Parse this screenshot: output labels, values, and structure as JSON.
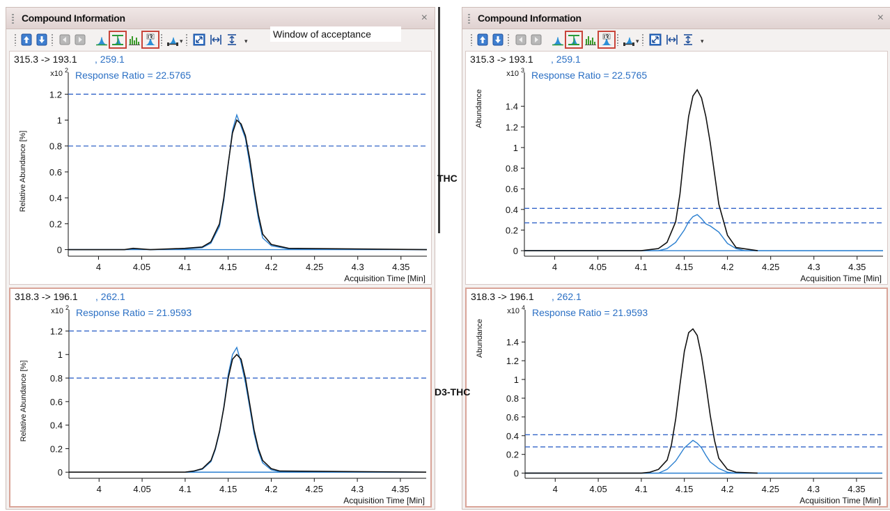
{
  "window_title": "Compound Information",
  "close_glyph": "×",
  "callout": "Window of acceptance",
  "labels": {
    "thc": "THC",
    "d3thc": "D3-THC"
  },
  "toolbar_icons": [
    "move-up-icon",
    "move-down-icon",
    "previous-icon",
    "next-icon",
    "peak-icon",
    "qualifier-range-icon",
    "spectrum-bars-icon",
    "internal-standard-icon",
    "integrate-icon",
    "autoscale-icon",
    "fit-horizontal-icon",
    "fit-vertical-icon"
  ],
  "toolbar_highlighted": [
    "qualifier-range-icon",
    "internal-standard-icon"
  ],
  "colors": {
    "primary_trace": "#111111",
    "qualifier_trace": "#2a7fd0",
    "limit_lines": "#3264c8",
    "ratio_text": "#2a6fc4",
    "highlight": "#c8443a"
  },
  "chart_data": [
    {
      "id": "left-top",
      "type": "line",
      "transition": "315.3 -> 193.1",
      "qualifier": ", 259.1",
      "annotation": "Response Ratio = 22.5765",
      "ylabel": "Relative Abundance [%]",
      "yscale_label": "x10",
      "yscale_exp": "2",
      "xlabel": "Acquisition Time [Min]",
      "xlim": [
        3.965,
        4.38
      ],
      "ylim": [
        -0.04,
        1.25
      ],
      "xticks": [
        "4",
        "4.05",
        "4.1",
        "4.15",
        "4.2",
        "4.25",
        "4.3",
        "4.35"
      ],
      "yticks": [
        "0",
        "0.2",
        "0.4",
        "0.6",
        "0.8",
        "1",
        "1.2"
      ],
      "dashed_levels": [
        1.2,
        0.8
      ],
      "series": [
        {
          "role": "primary",
          "x": [
            3.965,
            4.03,
            4.04,
            4.06,
            4.1,
            4.12,
            4.13,
            4.14,
            4.145,
            4.15,
            4.155,
            4.16,
            4.165,
            4.17,
            4.175,
            4.18,
            4.185,
            4.19,
            4.2,
            4.22,
            4.38
          ],
          "y": [
            0,
            0,
            0.01,
            0,
            0.01,
            0.02,
            0.06,
            0.2,
            0.4,
            0.66,
            0.9,
            1.0,
            0.97,
            0.88,
            0.7,
            0.47,
            0.27,
            0.12,
            0.04,
            0.01,
            0
          ]
        },
        {
          "role": "qualifier",
          "x": [
            3.965,
            4.03,
            4.04,
            4.06,
            4.1,
            4.12,
            4.13,
            4.14,
            4.145,
            4.15,
            4.155,
            4.16,
            4.165,
            4.17,
            4.175,
            4.18,
            4.185,
            4.19,
            4.2,
            4.22,
            4.38
          ],
          "y": [
            0,
            0,
            0.005,
            0,
            0.005,
            0.015,
            0.05,
            0.18,
            0.38,
            0.65,
            0.92,
            1.04,
            0.95,
            0.86,
            0.66,
            0.44,
            0.24,
            0.09,
            0.03,
            0.005,
            0
          ]
        }
      ]
    },
    {
      "id": "left-bottom",
      "type": "line",
      "transition": "318.3 -> 196.1",
      "qualifier": ", 262.1",
      "annotation": "Response Ratio = 21.9593",
      "ylabel": "Relative Abundance [%]",
      "yscale_label": "x10",
      "yscale_exp": "2",
      "xlabel": "Acquisition Time [Min]",
      "xlim": [
        3.965,
        4.38
      ],
      "ylim": [
        -0.04,
        1.25
      ],
      "xticks": [
        "4",
        "4.05",
        "4.1",
        "4.15",
        "4.2",
        "4.25",
        "4.3",
        "4.35"
      ],
      "yticks": [
        "0",
        "0.2",
        "0.4",
        "0.6",
        "0.8",
        "1",
        "1.2"
      ],
      "dashed_levels": [
        1.2,
        0.8
      ],
      "series": [
        {
          "role": "primary",
          "x": [
            3.965,
            4.1,
            4.11,
            4.12,
            4.13,
            4.135,
            4.14,
            4.145,
            4.15,
            4.155,
            4.16,
            4.165,
            4.17,
            4.175,
            4.18,
            4.185,
            4.19,
            4.2,
            4.21,
            4.38
          ],
          "y": [
            0,
            0,
            0.01,
            0.03,
            0.1,
            0.2,
            0.35,
            0.55,
            0.8,
            0.96,
            1.0,
            0.96,
            0.8,
            0.58,
            0.36,
            0.2,
            0.1,
            0.03,
            0.01,
            0
          ]
        },
        {
          "role": "qualifier",
          "x": [
            3.965,
            4.1,
            4.11,
            4.12,
            4.13,
            4.135,
            4.14,
            4.145,
            4.15,
            4.155,
            4.16,
            4.165,
            4.17,
            4.175,
            4.18,
            4.185,
            4.19,
            4.2,
            4.21,
            4.38
          ],
          "y": [
            0,
            0,
            0.008,
            0.025,
            0.09,
            0.19,
            0.34,
            0.56,
            0.83,
            1.0,
            1.06,
            0.93,
            0.76,
            0.55,
            0.33,
            0.18,
            0.08,
            0.02,
            0.005,
            0
          ]
        }
      ]
    },
    {
      "id": "right-top",
      "type": "line",
      "transition": "315.3 -> 193.1",
      "qualifier": ", 259.1",
      "annotation": "Response Ratio = 22.5765",
      "ylabel": "Abundance",
      "yscale_label": "x10",
      "yscale_exp": "3",
      "xlabel": "Acquisition Time [Min]",
      "xlim": [
        3.965,
        4.38
      ],
      "ylim": [
        -0.04,
        1.58
      ],
      "xticks": [
        "4",
        "4.05",
        "4.1",
        "4.15",
        "4.2",
        "4.25",
        "4.3",
        "4.35"
      ],
      "yticks": [
        "0",
        "0.2",
        "0.4",
        "0.6",
        "0.8",
        "1",
        "1.2",
        "1.4"
      ],
      "dashed_levels": [
        0.41,
        0.27
      ],
      "series": [
        {
          "role": "primary",
          "x": [
            3.965,
            4.1,
            4.12,
            4.13,
            4.14,
            4.145,
            4.15,
            4.155,
            4.16,
            4.165,
            4.17,
            4.175,
            4.18,
            4.185,
            4.19,
            4.2,
            4.21,
            4.235
          ],
          "y": [
            0,
            0,
            0.02,
            0.08,
            0.28,
            0.55,
            0.95,
            1.3,
            1.5,
            1.56,
            1.48,
            1.3,
            1.05,
            0.75,
            0.45,
            0.15,
            0.03,
            0
          ]
        },
        {
          "role": "qualifier",
          "x": [
            3.965,
            4.12,
            4.13,
            4.14,
            4.15,
            4.155,
            4.16,
            4.165,
            4.17,
            4.175,
            4.18,
            4.19,
            4.2,
            4.21,
            4.22,
            4.38
          ],
          "y": [
            0,
            0,
            0.02,
            0.08,
            0.2,
            0.28,
            0.33,
            0.35,
            0.31,
            0.26,
            0.24,
            0.18,
            0.07,
            0.02,
            0,
            0
          ]
        }
      ]
    },
    {
      "id": "right-bottom",
      "type": "line",
      "transition": "318.3 -> 196.1",
      "qualifier": ", 262.1",
      "annotation": "Response Ratio = 21.9593",
      "ylabel": "Abundance",
      "yscale_label": "x10",
      "yscale_exp": "4",
      "xlabel": "Acquisition Time [Min]",
      "xlim": [
        3.965,
        4.38
      ],
      "ylim": [
        -0.04,
        1.58
      ],
      "xticks": [
        "4",
        "4.05",
        "4.1",
        "4.15",
        "4.2",
        "4.25",
        "4.3",
        "4.35"
      ],
      "yticks": [
        "0",
        "0.2",
        "0.4",
        "0.6",
        "0.8",
        "1",
        "1.2",
        "1.4"
      ],
      "dashed_levels": [
        0.41,
        0.28
      ],
      "series": [
        {
          "role": "primary",
          "x": [
            3.965,
            4.1,
            4.11,
            4.12,
            4.13,
            4.135,
            4.14,
            4.145,
            4.15,
            4.155,
            4.16,
            4.165,
            4.17,
            4.175,
            4.18,
            4.185,
            4.19,
            4.2,
            4.21,
            4.235
          ],
          "y": [
            0,
            0,
            0.01,
            0.04,
            0.14,
            0.3,
            0.58,
            0.95,
            1.3,
            1.5,
            1.54,
            1.47,
            1.25,
            0.95,
            0.62,
            0.35,
            0.16,
            0.04,
            0.01,
            0
          ]
        },
        {
          "role": "qualifier",
          "x": [
            3.965,
            4.12,
            4.13,
            4.14,
            4.145,
            4.15,
            4.155,
            4.16,
            4.165,
            4.17,
            4.175,
            4.18,
            4.19,
            4.2,
            4.21,
            4.38
          ],
          "y": [
            0,
            0,
            0.04,
            0.13,
            0.2,
            0.27,
            0.31,
            0.35,
            0.32,
            0.27,
            0.19,
            0.12,
            0.05,
            0.01,
            0,
            0
          ]
        }
      ]
    }
  ]
}
